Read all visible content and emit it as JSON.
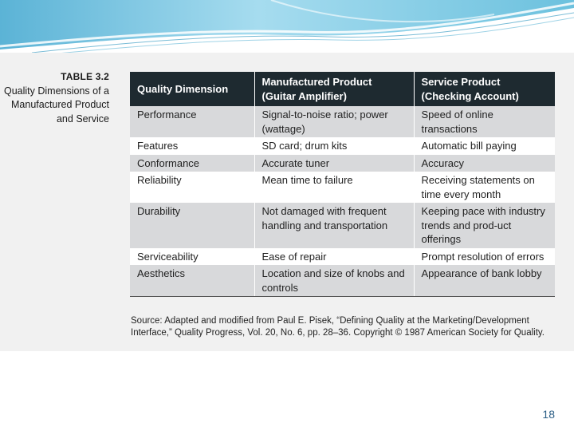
{
  "table": {
    "number": "TABLE 3.2",
    "caption": "Quality Dimensions of a Manufactured Product and Service",
    "headers": [
      "Quality Dimension",
      "Manufactured Product (Guitar Amplifier)",
      "Service Product (Checking Account)"
    ],
    "rows": [
      [
        "Performance",
        "Signal-to-noise ratio; power (wattage)",
        "Speed of online transactions"
      ],
      [
        "Features",
        "SD card; drum kits",
        "Automatic bill paying"
      ],
      [
        "Conformance",
        "Accurate tuner",
        "Accuracy"
      ],
      [
        "Reliability",
        "Mean time to failure",
        "Receiving statements on time every month"
      ],
      [
        "Durability",
        "Not damaged with frequent handling and transportation",
        "Keeping pace with industry trends and prod-uct offerings"
      ],
      [
        "Serviceability",
        "Ease of repair",
        "Prompt resolution of errors"
      ],
      [
        "Aesthetics",
        "Location and size of knobs and controls",
        "Appearance of bank lobby"
      ]
    ],
    "source": "Source: Adapted and modified from Paul E. Pisek, “Defining Quality at the Marketing/Development Interface,” Quality Progress, Vol. 20, No. 6, pp. 28–36. Copyright © 1987 American Society for Quality."
  },
  "page_number": "18",
  "colors": {
    "header_bg": "#1e2a30",
    "shaded_row": "#d8d9db",
    "page_number": "#2c5f86",
    "banner": "#7cc7e0"
  }
}
